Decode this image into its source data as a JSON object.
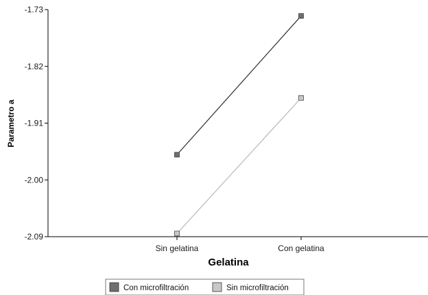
{
  "chart_data": {
    "type": "line",
    "xlabel": "Gelatina",
    "ylabel": "Parametro a",
    "categories": [
      "Sin gelatina",
      "Con gelatina"
    ],
    "ylim": [
      -2.09,
      -1.73
    ],
    "yticks": [
      "-1.73",
      "-1.82",
      "-1.91",
      "-2.00",
      "-2.09"
    ],
    "ytick_values": [
      -1.73,
      -1.82,
      -1.91,
      -2.0,
      -2.09
    ],
    "grid": false,
    "legend_position": "bottom",
    "series": [
      {
        "name": "Con microfiltración",
        "values": [
          -1.96,
          -1.74
        ],
        "line_color": "#2b2b2b",
        "marker_color": "#6f6f6f"
      },
      {
        "name": "Sin microfiltración",
        "values": [
          -2.085,
          -1.87
        ],
        "line_color": "#b8b8b8",
        "marker_color": "#c8c8c8"
      }
    ]
  }
}
